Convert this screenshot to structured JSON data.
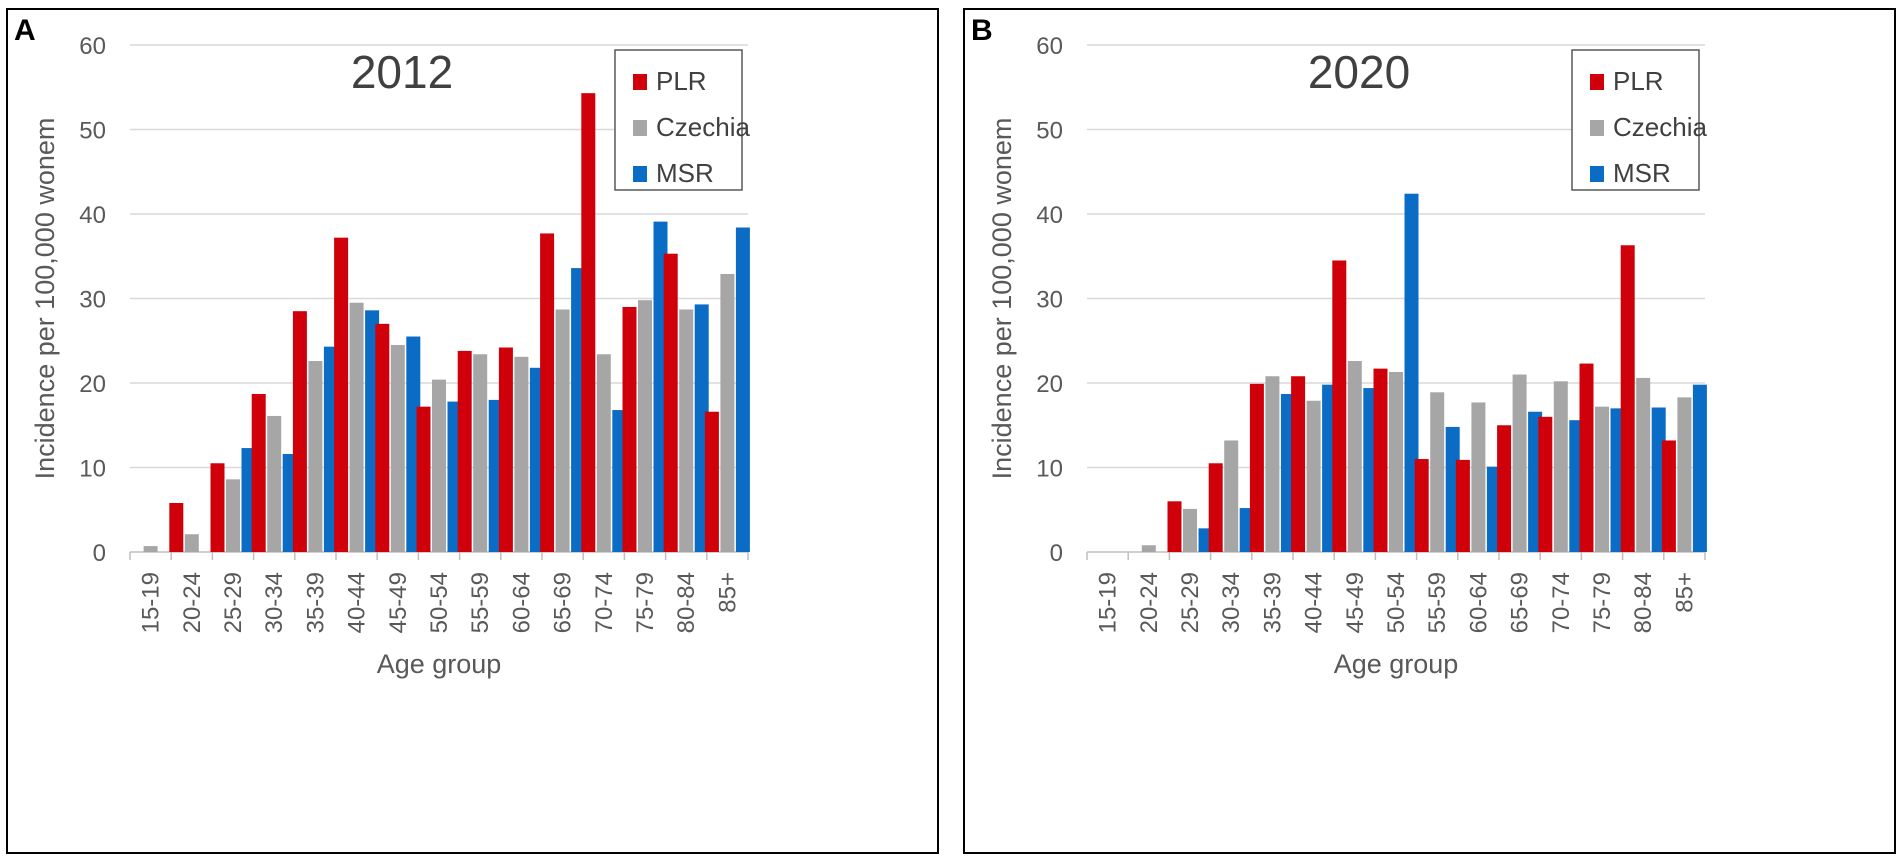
{
  "colors": {
    "PLR": "#d0000b",
    "Czechia": "#a6a6a6",
    "MSR": "#0a6cc4"
  },
  "chart_data": [
    {
      "panel_label": "A",
      "type": "bar",
      "title": "2012",
      "xlabel": "Age group",
      "ylabel": "Incidence per 100,000 wonem",
      "ylim": [
        0,
        60
      ],
      "yticks": [
        "0",
        "10",
        "20",
        "30",
        "40",
        "50",
        "60"
      ],
      "grid": true,
      "legend_position": "top-right",
      "categories": [
        "15-19",
        "20-24",
        "25-29",
        "30-34",
        "35-39",
        "40-44",
        "45-49",
        "50-54",
        "55-59",
        "60-64",
        "65-69",
        "70-74",
        "75-79",
        "80-84",
        "85+"
      ],
      "series": [
        {
          "name": "PLR",
          "color_key": "PLR",
          "values": [
            0,
            5.8,
            10.5,
            18.7,
            28.5,
            37.2,
            27.0,
            17.2,
            23.8,
            24.2,
            37.7,
            54.3,
            29.0,
            35.3,
            16.6
          ]
        },
        {
          "name": "Czechia",
          "color_key": "Czechia",
          "values": [
            0.7,
            2.1,
            8.6,
            16.1,
            22.6,
            29.5,
            24.5,
            20.4,
            23.4,
            23.1,
            28.7,
            23.4,
            29.8,
            28.7,
            32.9
          ]
        },
        {
          "name": "MSR",
          "color_key": "MSR",
          "values": [
            0,
            0,
            12.3,
            11.6,
            24.3,
            28.6,
            25.5,
            17.8,
            18.0,
            21.8,
            33.6,
            16.8,
            39.1,
            29.3,
            38.4
          ]
        }
      ]
    },
    {
      "panel_label": "B",
      "type": "bar",
      "title": "2020",
      "xlabel": "Age group",
      "ylabel": "Incidence per 100,000 wonem",
      "ylim": [
        0,
        60
      ],
      "yticks": [
        "0",
        "10",
        "20",
        "30",
        "40",
        "50",
        "60"
      ],
      "grid": true,
      "legend_position": "top-right",
      "categories": [
        "15-19",
        "20-24",
        "25-29",
        "30-34",
        "35-39",
        "40-44",
        "45-49",
        "50-54",
        "55-59",
        "60-64",
        "65-69",
        "70-74",
        "75-79",
        "80-84",
        "85+"
      ],
      "series": [
        {
          "name": "PLR",
          "color_key": "PLR",
          "values": [
            0,
            0,
            6.0,
            10.5,
            19.9,
            20.8,
            34.5,
            21.7,
            11.0,
            10.9,
            15.0,
            16.0,
            22.3,
            36.3,
            13.2
          ]
        },
        {
          "name": "Czechia",
          "color_key": "Czechia",
          "values": [
            0,
            0.8,
            5.1,
            13.2,
            20.8,
            17.9,
            22.6,
            21.3,
            18.9,
            17.7,
            21.0,
            20.2,
            17.2,
            20.6,
            18.3
          ]
        },
        {
          "name": "MSR",
          "color_key": "MSR",
          "values": [
            0,
            0,
            2.8,
            5.2,
            18.7,
            19.8,
            19.4,
            42.4,
            14.8,
            10.1,
            16.6,
            15.6,
            17.0,
            17.1,
            19.8
          ]
        }
      ]
    }
  ]
}
